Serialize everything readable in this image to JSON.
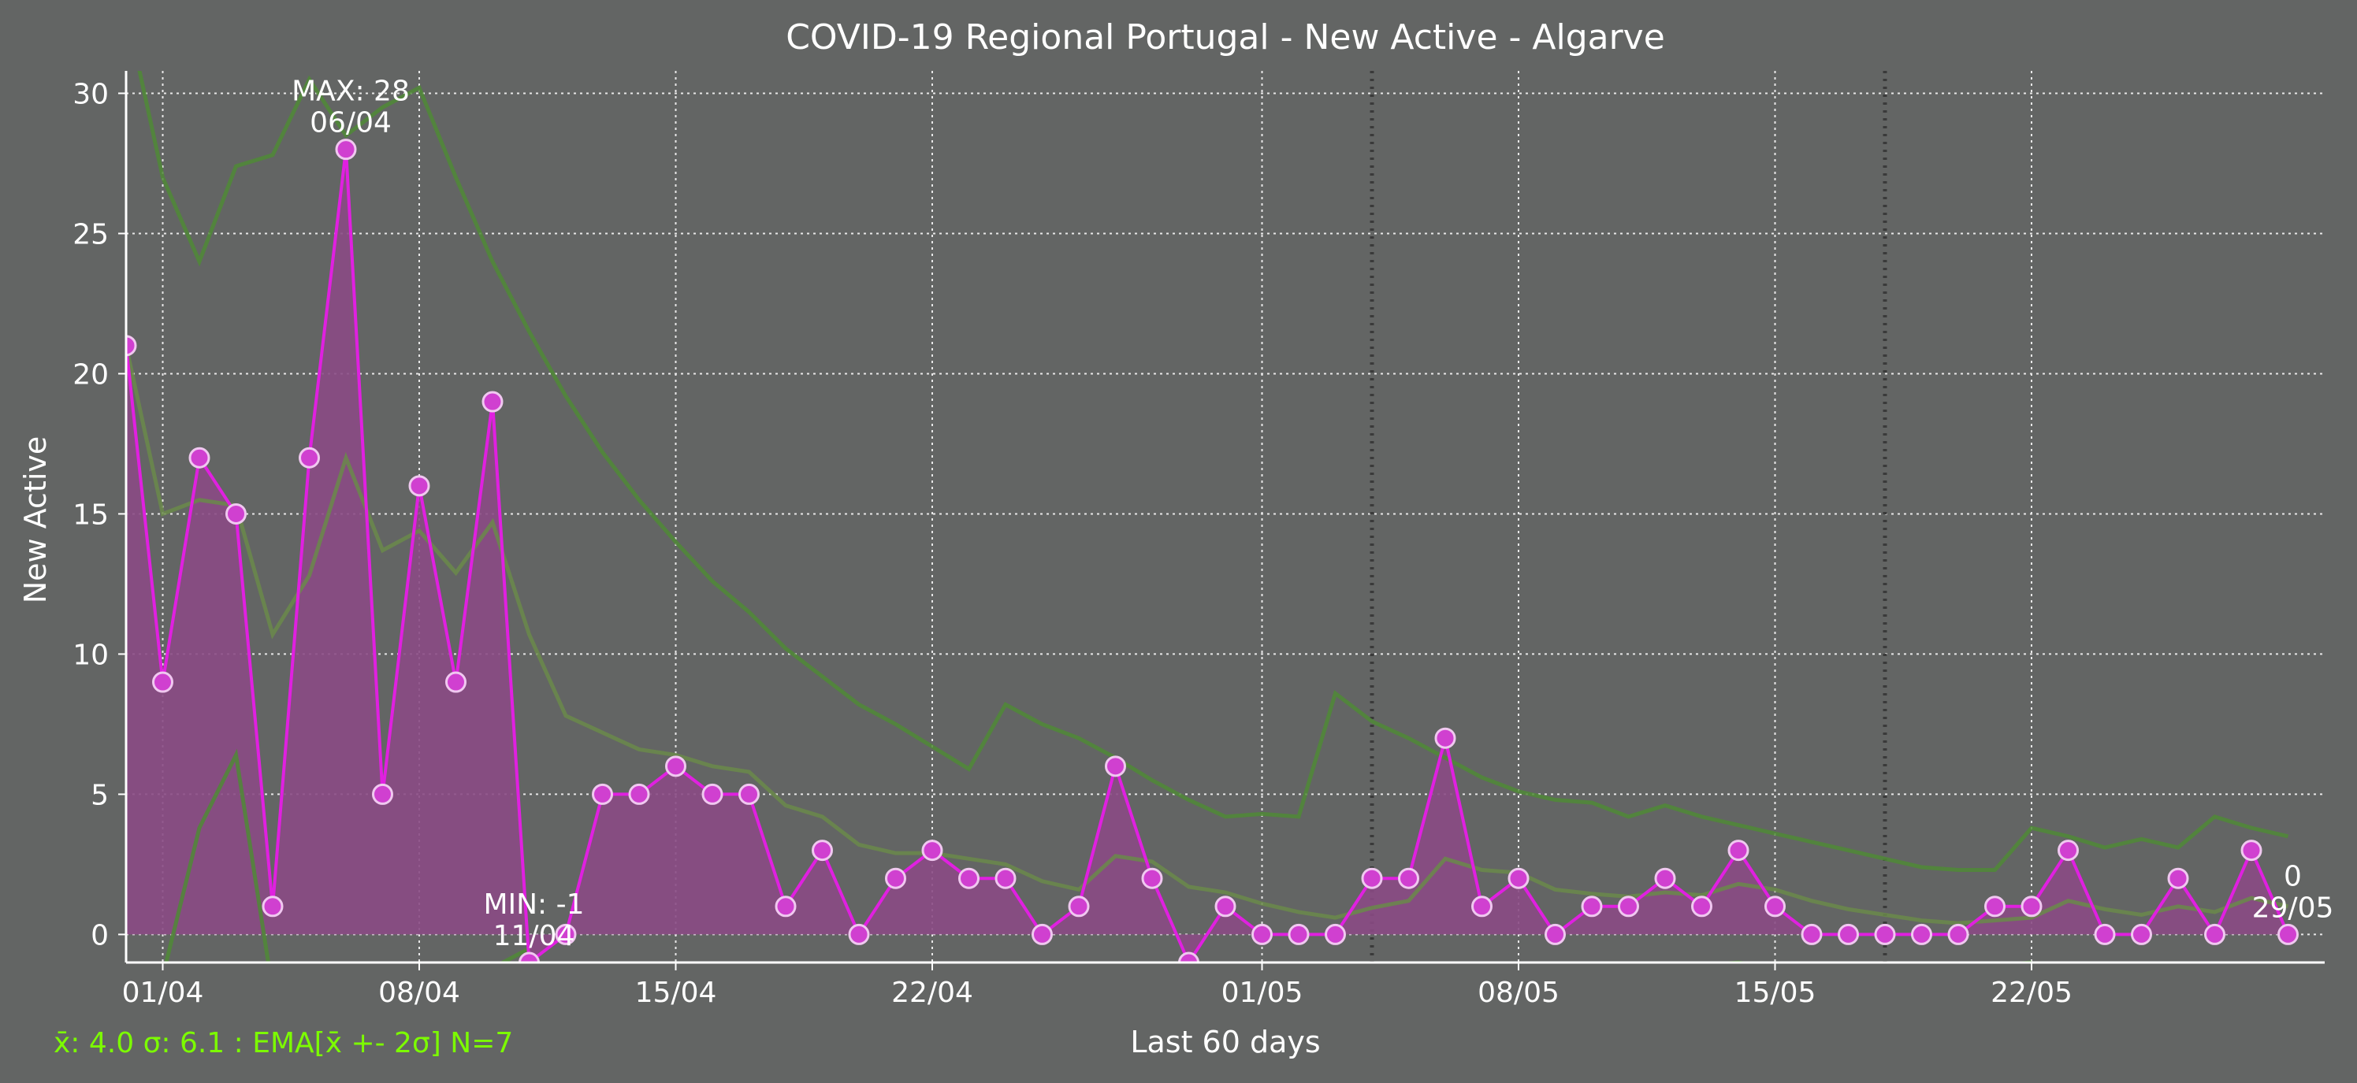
{
  "chart_data": {
    "type": "line",
    "title": "COVID-19 Regional Portugal - New Active - Algarve",
    "xlabel": "Last 60 days",
    "ylabel": "New Active",
    "ylim": [
      -1,
      30.8
    ],
    "y_ticks": [
      0,
      5,
      10,
      15,
      20,
      25,
      30
    ],
    "x_ticks": [
      {
        "day": 1,
        "label": "01/04"
      },
      {
        "day": 8,
        "label": "08/04"
      },
      {
        "day": 15,
        "label": "15/04"
      },
      {
        "day": 22,
        "label": "22/04"
      },
      {
        "day": 31,
        "label": "01/05"
      },
      {
        "day": 38,
        "label": "08/05"
      },
      {
        "day": 45,
        "label": "15/05"
      },
      {
        "day": 52,
        "label": "22/05"
      }
    ],
    "x_range_days": [
      0,
      60
    ],
    "vertical_markers_days": [
      34,
      48
    ],
    "grid": true,
    "series": [
      {
        "values": [
          21,
          9,
          17,
          15,
          1,
          17,
          28,
          5,
          16,
          9,
          19,
          -1,
          0,
          5,
          5,
          6,
          5,
          5,
          1,
          3,
          0,
          2,
          3,
          2,
          2,
          0,
          1,
          6,
          2,
          -1,
          1,
          0,
          0,
          0,
          2,
          2,
          7,
          1,
          2,
          0,
          1,
          1,
          2,
          1,
          3,
          1,
          0,
          0,
          0,
          0,
          0,
          1,
          1,
          3,
          0,
          0,
          2,
          0,
          3,
          0
        ],
        "color": "#e020e0"
      },
      {
        "values": [
          21,
          15,
          15.5,
          15.3,
          10.7,
          12.8,
          17,
          13.7,
          14.4,
          12.9,
          14.7,
          10.7,
          7.8,
          7.2,
          6.6,
          6.4,
          6,
          5.8,
          4.6,
          4.2,
          3.2,
          2.9,
          2.9,
          2.7,
          2.5,
          1.9,
          1.6,
          2.8,
          2.6,
          1.7,
          1.5,
          1.1,
          0.8,
          0.6,
          0.95,
          1.2,
          2.7,
          2.3,
          2.2,
          1.6,
          1.45,
          1.35,
          1.5,
          1.4,
          1.8,
          1.6,
          1.2,
          0.9,
          0.7,
          0.5,
          0.4,
          0.5,
          0.6,
          1.2,
          0.9,
          0.7,
          1.0,
          0.8,
          1.3,
          1.0
        ],
        "color": "#6a8a4a"
      },
      {
        "values": [
          33,
          27,
          24,
          27.4,
          27.8,
          30.5,
          28.5,
          29.5,
          30.2,
          27,
          24,
          21.5,
          19.2,
          17.2,
          15.5,
          14,
          12.6,
          11.5,
          10.2,
          9.2,
          8.2,
          7.5,
          6.7,
          5.9,
          8.2,
          7.5,
          7,
          6.3,
          5.5,
          4.8,
          4.2,
          4.3,
          4.2,
          8.6,
          7.6,
          7,
          6.3,
          5.6,
          5.1,
          4.8,
          4.7,
          4.2,
          4.6,
          4.2,
          3.9,
          3.6,
          3.3,
          3,
          2.7,
          2.4,
          2.3,
          2.3,
          3.8,
          3.5,
          3.1,
          3.4,
          3.1,
          4.2,
          3.8,
          3.5
        ],
        "color": "#4f8a36"
      },
      {
        "values": [
          null,
          -1.5,
          3.8,
          6.4,
          -2,
          null,
          null,
          null,
          null,
          null,
          -1.2,
          -0.5,
          null,
          null,
          null,
          null,
          null,
          null,
          null,
          null,
          null,
          null,
          null,
          null,
          null,
          null,
          null,
          null,
          null,
          null,
          null,
          null,
          null,
          null,
          null,
          null,
          null,
          null,
          null,
          null,
          null,
          null,
          null,
          -1.1,
          -1,
          -1.2,
          null,
          null,
          null,
          null,
          null,
          -1.1,
          -1,
          null,
          null,
          null,
          null,
          null,
          null,
          null
        ],
        "color": "#4f8a36"
      }
    ],
    "annotations": [
      {
        "day": 6,
        "value": 28,
        "text1": "MAX: 28",
        "text2": "06/04"
      },
      {
        "day": 11,
        "value": -1,
        "text1": "MIN: -1",
        "text2": "11/04"
      },
      {
        "day": 59,
        "value": 0,
        "text1": "0",
        "text2": "29/05"
      }
    ],
    "stats_text": "x̄: 4.0 σ: 6.1 : EMA[x̄ +- 2σ] N=7"
  },
  "colors": {
    "background": "#636564",
    "main_series": "#e020e0",
    "fill": "#8a4a84",
    "marker_fill": "#d040d0",
    "marker_edge": "#f0c8f0",
    "ema": "#6a8a4a",
    "band": "#4f8a36",
    "stats_text": "#7cfc00"
  }
}
